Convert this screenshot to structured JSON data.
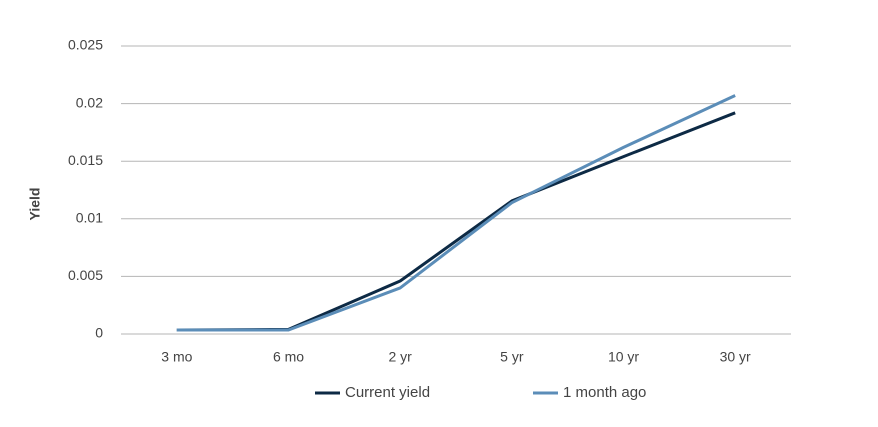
{
  "chart_data": {
    "type": "line",
    "y_label": "Yield",
    "categories": [
      "3 mo",
      "6 mo",
      "2 yr",
      "5 yr",
      "10 yr",
      "30 yr"
    ],
    "series": [
      {
        "name": "Current yield",
        "color": "#0d2a45",
        "values": [
          0.00035,
          0.0004,
          0.0046,
          0.01155,
          0.0154,
          0.0192
        ]
      },
      {
        "name": "1 month ago",
        "color": "#5b8db8",
        "values": [
          0.00035,
          0.00035,
          0.004,
          0.0114,
          0.0162,
          0.0207
        ]
      }
    ],
    "ylim": [
      0,
      0.025
    ],
    "yticks": [
      0,
      0.005,
      0.01,
      0.015,
      0.02,
      0.025
    ],
    "grid": true,
    "legend": "bottom"
  }
}
